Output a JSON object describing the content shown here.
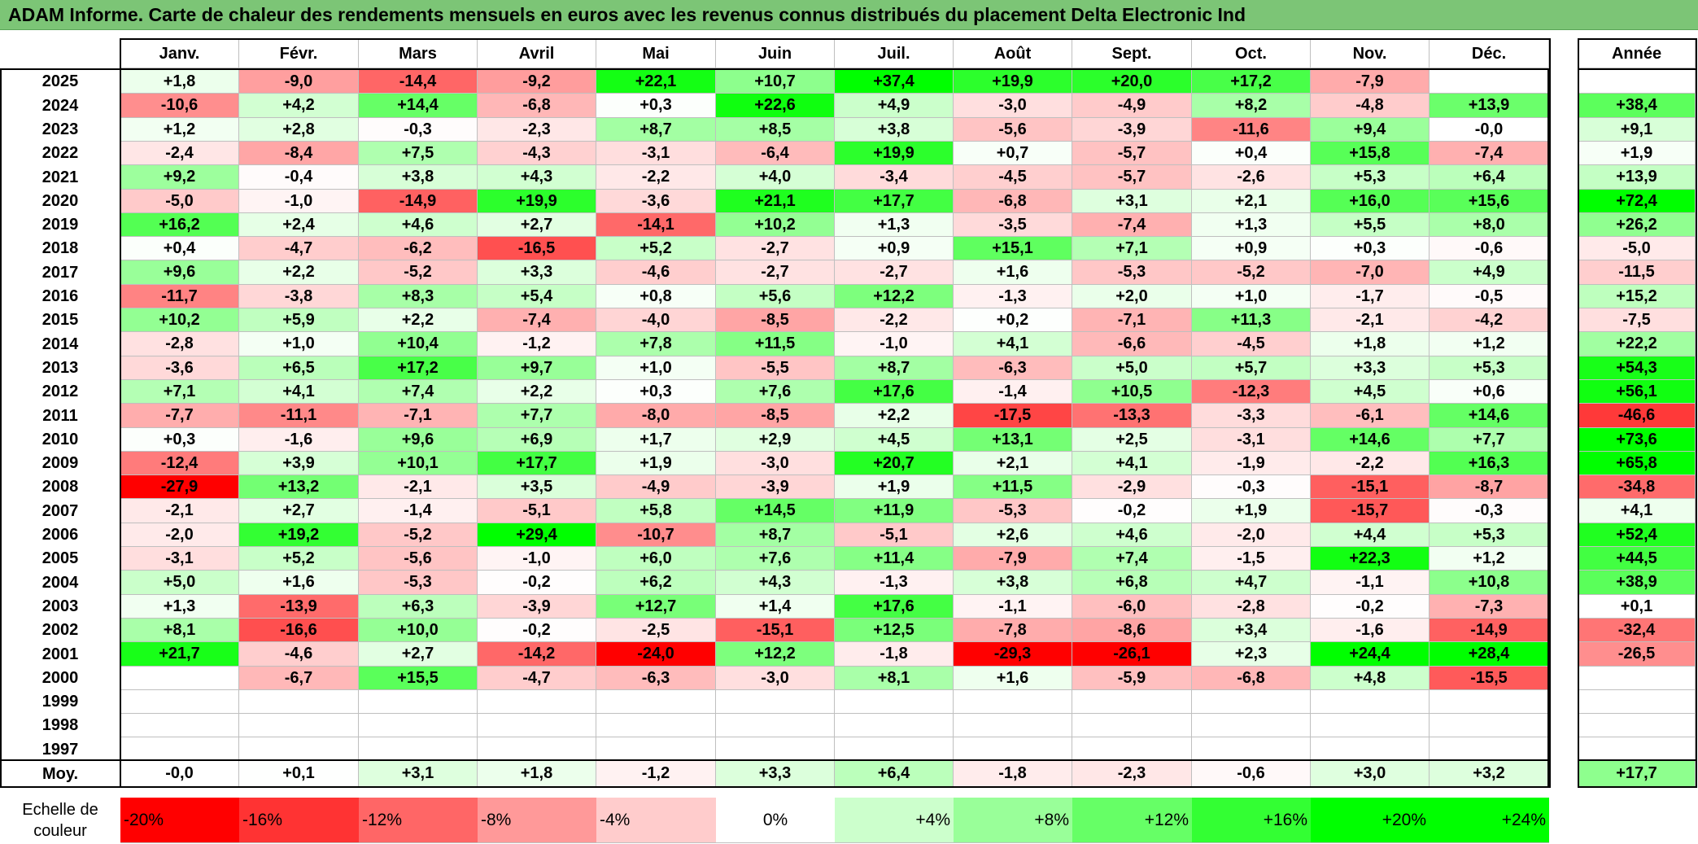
{
  "title": "ADAM Informe. Carte de chaleur des rendements mensuels en euros avec les revenus connus distribués du placement Delta Electronic Ind",
  "chart_data": {
    "type": "heatmap",
    "title": "ADAM Informe. Carte de chaleur des rendements mensuels en euros avec les revenus connus distribués du placement Delta Electronic Ind",
    "columns": [
      "Janv.",
      "Févr.",
      "Mars",
      "Avril",
      "Mai",
      "Juin",
      "Juil.",
      "Août",
      "Sept.",
      "Oct.",
      "Nov.",
      "Déc."
    ],
    "year_column_label": "Année",
    "rows": [
      {
        "year": "2025",
        "months": [
          "+1,8",
          "-9,0",
          "-14,4",
          "-9,2",
          "+22,1",
          "+10,7",
          "+37,4",
          "+19,9",
          "+20,0",
          "+17,2",
          "-7,9",
          ""
        ],
        "annual": ""
      },
      {
        "year": "2024",
        "months": [
          "-10,6",
          "+4,2",
          "+14,4",
          "-6,8",
          "+0,3",
          "+22,6",
          "+4,9",
          "-3,0",
          "-4,9",
          "+8,2",
          "-4,8",
          "+13,9"
        ],
        "annual": "+38,4"
      },
      {
        "year": "2023",
        "months": [
          "+1,2",
          "+2,8",
          "-0,3",
          "-2,3",
          "+8,7",
          "+8,5",
          "+3,8",
          "-5,6",
          "-3,9",
          "-11,6",
          "+9,4",
          "-0,0"
        ],
        "annual": "+9,1"
      },
      {
        "year": "2022",
        "months": [
          "-2,4",
          "-8,4",
          "+7,5",
          "-4,3",
          "-3,1",
          "-6,4",
          "+19,9",
          "+0,7",
          "-5,7",
          "+0,4",
          "+15,8",
          "-7,4"
        ],
        "annual": "+1,9"
      },
      {
        "year": "2021",
        "months": [
          "+9,2",
          "-0,4",
          "+3,8",
          "+4,3",
          "-2,2",
          "+4,0",
          "-3,4",
          "-4,5",
          "-5,7",
          "-2,6",
          "+5,3",
          "+6,4"
        ],
        "annual": "+13,9"
      },
      {
        "year": "2020",
        "months": [
          "-5,0",
          "-1,0",
          "-14,9",
          "+19,9",
          "-3,6",
          "+21,1",
          "+17,7",
          "-6,8",
          "+3,1",
          "+2,1",
          "+16,0",
          "+15,6"
        ],
        "annual": "+72,4"
      },
      {
        "year": "2019",
        "months": [
          "+16,2",
          "+2,4",
          "+4,6",
          "+2,7",
          "-14,1",
          "+10,2",
          "+1,3",
          "-3,5",
          "-7,4",
          "+1,3",
          "+5,5",
          "+8,0"
        ],
        "annual": "+26,2"
      },
      {
        "year": "2018",
        "months": [
          "+0,4",
          "-4,7",
          "-6,2",
          "-16,5",
          "+5,2",
          "-2,7",
          "+0,9",
          "+15,1",
          "+7,1",
          "+0,9",
          "+0,3",
          "-0,6"
        ],
        "annual": "-5,0"
      },
      {
        "year": "2017",
        "months": [
          "+9,6",
          "+2,2",
          "-5,2",
          "+3,3",
          "-4,6",
          "-2,7",
          "-2,7",
          "+1,6",
          "-5,3",
          "-5,2",
          "-7,0",
          "+4,9"
        ],
        "annual": "-11,5"
      },
      {
        "year": "2016",
        "months": [
          "-11,7",
          "-3,8",
          "+8,3",
          "+5,4",
          "+0,8",
          "+5,6",
          "+12,2",
          "-1,3",
          "+2,0",
          "+1,0",
          "-1,7",
          "-0,5"
        ],
        "annual": "+15,2"
      },
      {
        "year": "2015",
        "months": [
          "+10,2",
          "+5,9",
          "+2,2",
          "-7,4",
          "-4,0",
          "-8,5",
          "-2,2",
          "+0,2",
          "-7,1",
          "+11,3",
          "-2,1",
          "-4,2"
        ],
        "annual": "-7,5"
      },
      {
        "year": "2014",
        "months": [
          "-2,8",
          "+1,0",
          "+10,4",
          "-1,2",
          "+7,8",
          "+11,5",
          "-1,0",
          "+4,1",
          "-6,6",
          "-4,5",
          "+1,8",
          "+1,2"
        ],
        "annual": "+22,2"
      },
      {
        "year": "2013",
        "months": [
          "-3,6",
          "+6,5",
          "+17,2",
          "+9,7",
          "+1,0",
          "-5,5",
          "+8,7",
          "-6,3",
          "+5,0",
          "+5,7",
          "+3,3",
          "+5,3"
        ],
        "annual": "+54,3"
      },
      {
        "year": "2012",
        "months": [
          "+7,1",
          "+4,1",
          "+7,4",
          "+2,2",
          "+0,3",
          "+7,6",
          "+17,6",
          "-1,4",
          "+10,5",
          "-12,3",
          "+4,5",
          "+0,6"
        ],
        "annual": "+56,1"
      },
      {
        "year": "2011",
        "months": [
          "-7,7",
          "-11,1",
          "-7,1",
          "+7,7",
          "-8,0",
          "-8,5",
          "+2,2",
          "-17,5",
          "-13,3",
          "-3,3",
          "-6,1",
          "+14,6"
        ],
        "annual": "-46,6"
      },
      {
        "year": "2010",
        "months": [
          "+0,3",
          "-1,6",
          "+9,6",
          "+6,9",
          "+1,7",
          "+2,9",
          "+4,5",
          "+13,1",
          "+2,5",
          "-3,1",
          "+14,6",
          "+7,7"
        ],
        "annual": "+73,6"
      },
      {
        "year": "2009",
        "months": [
          "-12,4",
          "+3,9",
          "+10,1",
          "+17,7",
          "+1,9",
          "-3,0",
          "+20,7",
          "+2,1",
          "+4,1",
          "-1,9",
          "-2,2",
          "+16,3"
        ],
        "annual": "+65,8"
      },
      {
        "year": "2008",
        "months": [
          "-27,9",
          "+13,2",
          "-2,1",
          "+3,5",
          "-4,9",
          "-3,9",
          "+1,9",
          "+11,5",
          "-2,9",
          "-0,3",
          "-15,1",
          "-8,7"
        ],
        "annual": "-34,8"
      },
      {
        "year": "2007",
        "months": [
          "-2,1",
          "+2,7",
          "-1,4",
          "-5,1",
          "+5,8",
          "+14,5",
          "+11,9",
          "-5,3",
          "-0,2",
          "+1,9",
          "-15,7",
          "-0,3"
        ],
        "annual": "+4,1"
      },
      {
        "year": "2006",
        "months": [
          "-2,0",
          "+19,2",
          "-5,2",
          "+29,4",
          "-10,7",
          "+8,7",
          "-5,1",
          "+2,6",
          "+4,6",
          "-2,0",
          "+4,4",
          "+5,3"
        ],
        "annual": "+52,4"
      },
      {
        "year": "2005",
        "months": [
          "-3,1",
          "+5,2",
          "-5,6",
          "-1,0",
          "+6,0",
          "+7,6",
          "+11,4",
          "-7,9",
          "+7,4",
          "-1,5",
          "+22,3",
          "+1,2"
        ],
        "annual": "+44,5"
      },
      {
        "year": "2004",
        "months": [
          "+5,0",
          "+1,6",
          "-5,3",
          "-0,2",
          "+6,2",
          "+4,3",
          "-1,3",
          "+3,8",
          "+6,8",
          "+4,7",
          "-1,1",
          "+10,8"
        ],
        "annual": "+38,9"
      },
      {
        "year": "2003",
        "months": [
          "+1,3",
          "-13,9",
          "+6,3",
          "-3,9",
          "+12,7",
          "+1,4",
          "+17,6",
          "-1,1",
          "-6,0",
          "-2,8",
          "-0,2",
          "-7,3"
        ],
        "annual": "+0,1"
      },
      {
        "year": "2002",
        "months": [
          "+8,1",
          "-16,6",
          "+10,0",
          "-0,2",
          "-2,5",
          "-15,1",
          "+12,5",
          "-7,8",
          "-8,6",
          "+3,4",
          "-1,6",
          "-14,9"
        ],
        "annual": "-32,4"
      },
      {
        "year": "2001",
        "months": [
          "+21,7",
          "-4,6",
          "+2,7",
          "-14,2",
          "-24,0",
          "+12,2",
          "-1,8",
          "-29,3",
          "-26,1",
          "+2,3",
          "+24,4",
          "+28,4"
        ],
        "annual": "-26,5"
      },
      {
        "year": "2000",
        "months": [
          "",
          "-6,7",
          "+15,5",
          "-4,7",
          "-6,3",
          "-3,0",
          "+8,1",
          "+1,6",
          "-5,9",
          "-6,8",
          "+4,8",
          "-15,5"
        ],
        "annual": ""
      },
      {
        "year": "1999",
        "months": [
          "",
          "",
          "",
          "",
          "",
          "",
          "",
          "",
          "",
          "",
          "",
          ""
        ],
        "annual": ""
      },
      {
        "year": "1998",
        "months": [
          "",
          "",
          "",
          "",
          "",
          "",
          "",
          "",
          "",
          "",
          "",
          ""
        ],
        "annual": ""
      },
      {
        "year": "1997",
        "months": [
          "",
          "",
          "",
          "",
          "",
          "",
          "",
          "",
          "",
          "",
          "",
          ""
        ],
        "annual": ""
      }
    ],
    "average": {
      "label": "Moy.",
      "months": [
        "-0,0",
        "+0,1",
        "+3,1",
        "+1,8",
        "-1,2",
        "+3,3",
        "+6,4",
        "-1,8",
        "-2,3",
        "-0,6",
        "+3,0",
        "+3,2"
      ],
      "annual": "+17,7"
    },
    "scale": {
      "label_line1": "Echelle de",
      "label_line2": "couleur",
      "steps": [
        "-20%",
        "-16%",
        "-12%",
        "-8%",
        "-4%",
        "0%",
        "+4%",
        "+8%",
        "+12%",
        "+16%",
        "+20%",
        "+24%"
      ],
      "values": [
        -20,
        -16,
        -12,
        -8,
        -4,
        0,
        4,
        8,
        12,
        16,
        20,
        24
      ]
    },
    "colors": {
      "negative": "#ff0000",
      "positive": "#00ff00",
      "neutral": "#ffffff"
    }
  }
}
